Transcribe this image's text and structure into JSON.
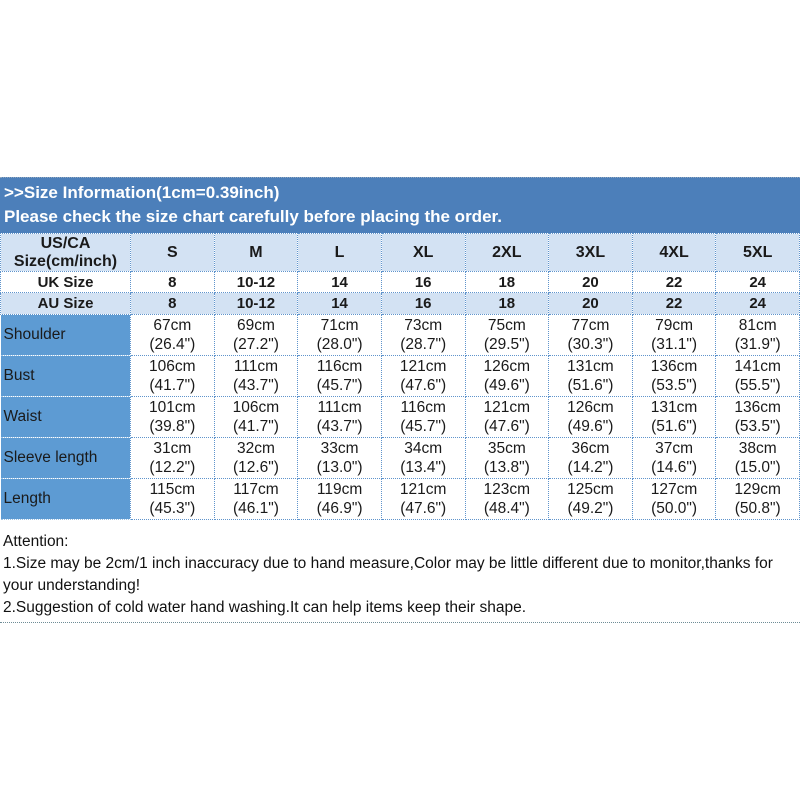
{
  "banner": {
    "title": ">>Size Information(1cm=0.39inch)",
    "subtitle": "Please check the size chart carefully before placing the order."
  },
  "colors": {
    "banner_bg": "#4c7fba",
    "header_row_bg": "#d3e2f3",
    "label_column_bg": "#5d9bd3",
    "cell_border_dotted": "#5f94cc",
    "banner_text": "#ffffff",
    "body_text": "#1a1a1a"
  },
  "table": {
    "corner": {
      "line1": "US/CA",
      "line2": "Size(cm/inch)"
    },
    "sizes": [
      "S",
      "M",
      "L",
      "XL",
      "2XL",
      "3XL",
      "4XL",
      "5XL"
    ],
    "uk": {
      "label": "UK Size",
      "values": [
        "8",
        "10-12",
        "14",
        "16",
        "18",
        "20",
        "22",
        "24"
      ]
    },
    "au": {
      "label": "AU Size",
      "values": [
        "8",
        "10-12",
        "14",
        "16",
        "18",
        "20",
        "22",
        "24"
      ]
    },
    "rows": [
      {
        "label": "Shoulder",
        "cm": [
          "67cm",
          "69cm",
          "71cm",
          "73cm",
          "75cm",
          "77cm",
          "79cm",
          "81cm"
        ],
        "in": [
          "(26.4\")",
          "(27.2\")",
          "(28.0\")",
          "(28.7\")",
          "(29.5\")",
          "(30.3\")",
          "(31.1\")",
          "(31.9\")"
        ]
      },
      {
        "label": "Bust",
        "cm": [
          "106cm",
          "111cm",
          "116cm",
          "121cm",
          "126cm",
          "131cm",
          "136cm",
          "141cm"
        ],
        "in": [
          "(41.7\")",
          "(43.7\")",
          "(45.7\")",
          "(47.6\")",
          "(49.6\")",
          "(51.6\")",
          "(53.5\")",
          "(55.5\")"
        ]
      },
      {
        "label": "Waist",
        "cm": [
          "101cm",
          "106cm",
          "111cm",
          "116cm",
          "121cm",
          "126cm",
          "131cm",
          "136cm"
        ],
        "in": [
          "(39.8\")",
          "(41.7\")",
          "(43.7\")",
          "(45.7\")",
          "(47.6\")",
          "(49.6\")",
          "(51.6\")",
          "(53.5\")"
        ]
      },
      {
        "label": "Sleeve length",
        "cm": [
          "31cm",
          "32cm",
          "33cm",
          "34cm",
          "35cm",
          "36cm",
          "37cm",
          "38cm"
        ],
        "in": [
          "(12.2\")",
          "(12.6\")",
          "(13.0\")",
          "(13.4\")",
          "(13.8\")",
          "(14.2\")",
          "(14.6\")",
          "(15.0\")"
        ]
      },
      {
        "label": "Length",
        "cm": [
          "115cm",
          "117cm",
          "119cm",
          "121cm",
          "123cm",
          "125cm",
          "127cm",
          "129cm"
        ],
        "in": [
          "(45.3\")",
          "(46.1\")",
          "(46.9\")",
          "(47.6\")",
          "(48.4\")",
          "(49.2\")",
          "(50.0\")",
          "(50.8\")"
        ]
      }
    ]
  },
  "attention": {
    "heading": "Attention:",
    "note1": "1.Size may be 2cm/1 inch inaccuracy due to hand measure,Color may be little different due to monitor,thanks for your understanding!",
    "note2": "2.Suggestion of cold water hand washing.It can help items keep their shape."
  }
}
